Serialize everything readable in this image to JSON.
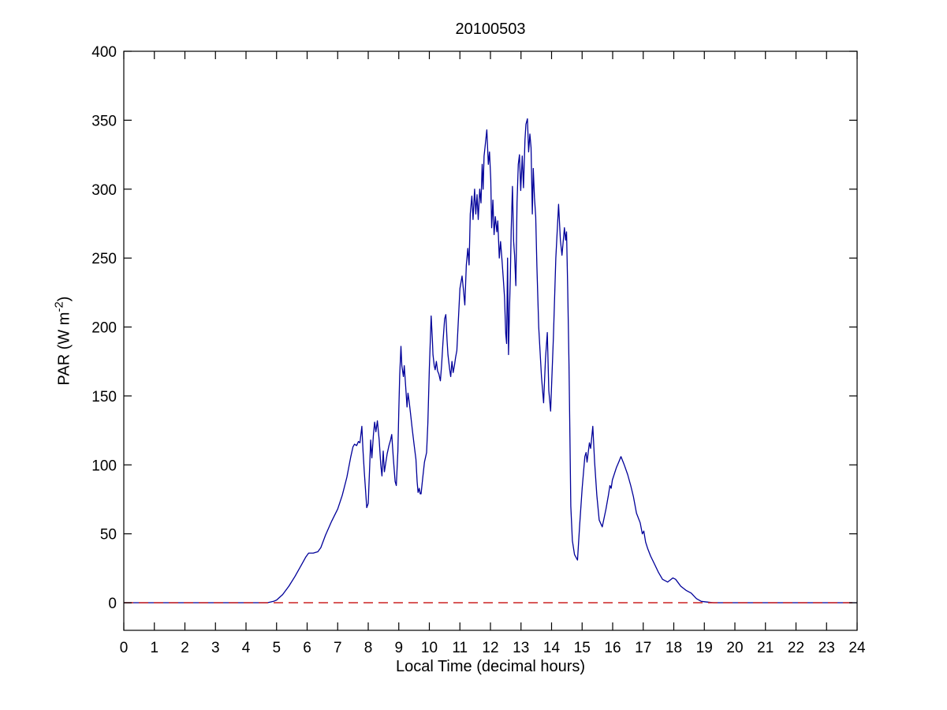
{
  "figure": {
    "title": "20100503",
    "xlabel": "Local Time (decimal hours)",
    "ylabel_prefix": "PAR (W m",
    "ylabel_sup": "-2",
    "ylabel_suffix": ")"
  },
  "chart_data": {
    "type": "line",
    "title": "20100503",
    "xlabel": "Local Time (decimal hours)",
    "ylabel": "PAR (W m^-2)",
    "xlim": [
      0,
      24
    ],
    "ylim": [
      -20,
      400
    ],
    "xticks": [
      0,
      1,
      2,
      3,
      4,
      5,
      6,
      7,
      8,
      9,
      10,
      11,
      12,
      13,
      14,
      15,
      16,
      17,
      18,
      19,
      20,
      21,
      22,
      23,
      24
    ],
    "yticks": [
      0,
      50,
      100,
      150,
      200,
      250,
      300,
      350,
      400
    ],
    "grid": false,
    "legend": "none",
    "colors": {
      "par_line": "#000099",
      "zero_line": "#cc2222",
      "axis": "#000000"
    },
    "series": [
      {
        "name": "PAR",
        "style": "solid",
        "color": "#000099",
        "points": [
          [
            0,
            0
          ],
          [
            0.5,
            0
          ],
          [
            1,
            0
          ],
          [
            1.5,
            0
          ],
          [
            2,
            0
          ],
          [
            2.5,
            0
          ],
          [
            3,
            0
          ],
          [
            3.5,
            0
          ],
          [
            4,
            0
          ],
          [
            4.4,
            0
          ],
          [
            4.7,
            0
          ],
          [
            4.9,
            1
          ],
          [
            5.0,
            2
          ],
          [
            5.2,
            6
          ],
          [
            5.4,
            12
          ],
          [
            5.6,
            19
          ],
          [
            5.8,
            27
          ],
          [
            5.95,
            33
          ],
          [
            6.05,
            36
          ],
          [
            6.2,
            36
          ],
          [
            6.35,
            37
          ],
          [
            6.45,
            40
          ],
          [
            6.6,
            49
          ],
          [
            6.8,
            59
          ],
          [
            7.0,
            68
          ],
          [
            7.15,
            78
          ],
          [
            7.3,
            91
          ],
          [
            7.43,
            106
          ],
          [
            7.5,
            113
          ],
          [
            7.55,
            115
          ],
          [
            7.62,
            114
          ],
          [
            7.68,
            117
          ],
          [
            7.73,
            116
          ],
          [
            7.79,
            128
          ],
          [
            7.83,
            110
          ],
          [
            7.87,
            95
          ],
          [
            7.95,
            69
          ],
          [
            8.0,
            72
          ],
          [
            8.05,
            100
          ],
          [
            8.08,
            118
          ],
          [
            8.12,
            105
          ],
          [
            8.17,
            122
          ],
          [
            8.21,
            131
          ],
          [
            8.25,
            124
          ],
          [
            8.3,
            132
          ],
          [
            8.36,
            118
          ],
          [
            8.41,
            100
          ],
          [
            8.45,
            92
          ],
          [
            8.49,
            110
          ],
          [
            8.53,
            95
          ],
          [
            8.57,
            101
          ],
          [
            8.62,
            108
          ],
          [
            8.68,
            114
          ],
          [
            8.73,
            118
          ],
          [
            8.77,
            122
          ],
          [
            8.82,
            105
          ],
          [
            8.88,
            88
          ],
          [
            8.92,
            85
          ],
          [
            8.97,
            110
          ],
          [
            9.0,
            140
          ],
          [
            9.03,
            165
          ],
          [
            9.07,
            186
          ],
          [
            9.1,
            172
          ],
          [
            9.15,
            164
          ],
          [
            9.18,
            172
          ],
          [
            9.23,
            155
          ],
          [
            9.27,
            142
          ],
          [
            9.3,
            152
          ],
          [
            9.34,
            146
          ],
          [
            9.38,
            138
          ],
          [
            9.44,
            126
          ],
          [
            9.5,
            115
          ],
          [
            9.56,
            104
          ],
          [
            9.6,
            88
          ],
          [
            9.63,
            80
          ],
          [
            9.67,
            83
          ],
          [
            9.7,
            79
          ],
          [
            9.73,
            79
          ],
          [
            9.78,
            90
          ],
          [
            9.84,
            102
          ],
          [
            9.91,
            109
          ],
          [
            9.95,
            130
          ],
          [
            10.0,
            170
          ],
          [
            10.06,
            208
          ],
          [
            10.1,
            190
          ],
          [
            10.12,
            180
          ],
          [
            10.16,
            172
          ],
          [
            10.19,
            169
          ],
          [
            10.23,
            175
          ],
          [
            10.27,
            168
          ],
          [
            10.31,
            166
          ],
          [
            10.36,
            161
          ],
          [
            10.4,
            172
          ],
          [
            10.45,
            190
          ],
          [
            10.5,
            206
          ],
          [
            10.54,
            209
          ],
          [
            10.58,
            190
          ],
          [
            10.61,
            180
          ],
          [
            10.66,
            170
          ],
          [
            10.7,
            164
          ],
          [
            10.74,
            175
          ],
          [
            10.78,
            167
          ],
          [
            10.82,
            172
          ],
          [
            10.86,
            178
          ],
          [
            10.9,
            183
          ],
          [
            10.95,
            205
          ],
          [
            11.0,
            228
          ],
          [
            11.07,
            237
          ],
          [
            11.12,
            226
          ],
          [
            11.16,
            216
          ],
          [
            11.21,
            245
          ],
          [
            11.26,
            257
          ],
          [
            11.3,
            245
          ],
          [
            11.34,
            282
          ],
          [
            11.39,
            295
          ],
          [
            11.43,
            278
          ],
          [
            11.48,
            300
          ],
          [
            11.52,
            282
          ],
          [
            11.56,
            296
          ],
          [
            11.6,
            278
          ],
          [
            11.65,
            300
          ],
          [
            11.69,
            290
          ],
          [
            11.73,
            318
          ],
          [
            11.76,
            300
          ],
          [
            11.79,
            324
          ],
          [
            11.83,
            332
          ],
          [
            11.88,
            343
          ],
          [
            11.93,
            318
          ],
          [
            11.97,
            327
          ],
          [
            12.01,
            307
          ],
          [
            12.04,
            272
          ],
          [
            12.08,
            292
          ],
          [
            12.12,
            267
          ],
          [
            12.16,
            280
          ],
          [
            12.21,
            269
          ],
          [
            12.24,
            277
          ],
          [
            12.29,
            250
          ],
          [
            12.33,
            262
          ],
          [
            12.38,
            248
          ],
          [
            12.42,
            235
          ],
          [
            12.46,
            222
          ],
          [
            12.5,
            195
          ],
          [
            12.53,
            188
          ],
          [
            12.56,
            250
          ],
          [
            12.59,
            180
          ],
          [
            12.62,
            210
          ],
          [
            12.65,
            236
          ],
          [
            12.68,
            270
          ],
          [
            12.72,
            302
          ],
          [
            12.76,
            262
          ],
          [
            12.79,
            252
          ],
          [
            12.83,
            230
          ],
          [
            12.87,
            290
          ],
          [
            12.91,
            318
          ],
          [
            12.95,
            325
          ],
          [
            12.99,
            299
          ],
          [
            13.04,
            324
          ],
          [
            13.08,
            301
          ],
          [
            13.13,
            336
          ],
          [
            13.16,
            347
          ],
          [
            13.21,
            351
          ],
          [
            13.25,
            327
          ],
          [
            13.29,
            340
          ],
          [
            13.33,
            330
          ],
          [
            13.37,
            282
          ],
          [
            13.4,
            315
          ],
          [
            13.44,
            294
          ],
          [
            13.48,
            280
          ],
          [
            13.52,
            244
          ],
          [
            13.58,
            200
          ],
          [
            13.67,
            164
          ],
          [
            13.74,
            145
          ],
          [
            13.8,
            177
          ],
          [
            13.86,
            196
          ],
          [
            13.91,
            154
          ],
          [
            13.97,
            139
          ],
          [
            14.06,
            192
          ],
          [
            14.14,
            250
          ],
          [
            14.23,
            289
          ],
          [
            14.29,
            263
          ],
          [
            14.34,
            252
          ],
          [
            14.42,
            272
          ],
          [
            14.46,
            263
          ],
          [
            14.49,
            269
          ],
          [
            14.53,
            227
          ],
          [
            14.57,
            173
          ],
          [
            14.6,
            120
          ],
          [
            14.63,
            70
          ],
          [
            14.68,
            45
          ],
          [
            14.75,
            35
          ],
          [
            14.85,
            31
          ],
          [
            14.92,
            56
          ],
          [
            15.0,
            83
          ],
          [
            15.09,
            106
          ],
          [
            15.13,
            109
          ],
          [
            15.16,
            102
          ],
          [
            15.24,
            116
          ],
          [
            15.28,
            112
          ],
          [
            15.35,
            128
          ],
          [
            15.41,
            102
          ],
          [
            15.48,
            78
          ],
          [
            15.56,
            60
          ],
          [
            15.66,
            55
          ],
          [
            15.78,
            68
          ],
          [
            15.86,
            78
          ],
          [
            15.91,
            85
          ],
          [
            15.95,
            83
          ],
          [
            15.99,
            89
          ],
          [
            16.12,
            98
          ],
          [
            16.2,
            102
          ],
          [
            16.27,
            106
          ],
          [
            16.38,
            100
          ],
          [
            16.49,
            93
          ],
          [
            16.59,
            85
          ],
          [
            16.68,
            77
          ],
          [
            16.78,
            65
          ],
          [
            16.9,
            58
          ],
          [
            16.97,
            50
          ],
          [
            17.02,
            52
          ],
          [
            17.08,
            44
          ],
          [
            17.15,
            39
          ],
          [
            17.24,
            34
          ],
          [
            17.37,
            28
          ],
          [
            17.5,
            22
          ],
          [
            17.63,
            17
          ],
          [
            17.8,
            15
          ],
          [
            17.97,
            18
          ],
          [
            18.06,
            17
          ],
          [
            18.23,
            12
          ],
          [
            18.4,
            9
          ],
          [
            18.57,
            7
          ],
          [
            18.74,
            3
          ],
          [
            18.9,
            1
          ],
          [
            19.1,
            0.5
          ],
          [
            19.3,
            0
          ],
          [
            20,
            0
          ],
          [
            21,
            0
          ],
          [
            22,
            0
          ],
          [
            23,
            0
          ],
          [
            24,
            0
          ]
        ]
      },
      {
        "name": "zero-reference",
        "style": "dashed",
        "color": "#cc2222",
        "points": [
          [
            0,
            0
          ],
          [
            24,
            0
          ]
        ]
      }
    ]
  }
}
